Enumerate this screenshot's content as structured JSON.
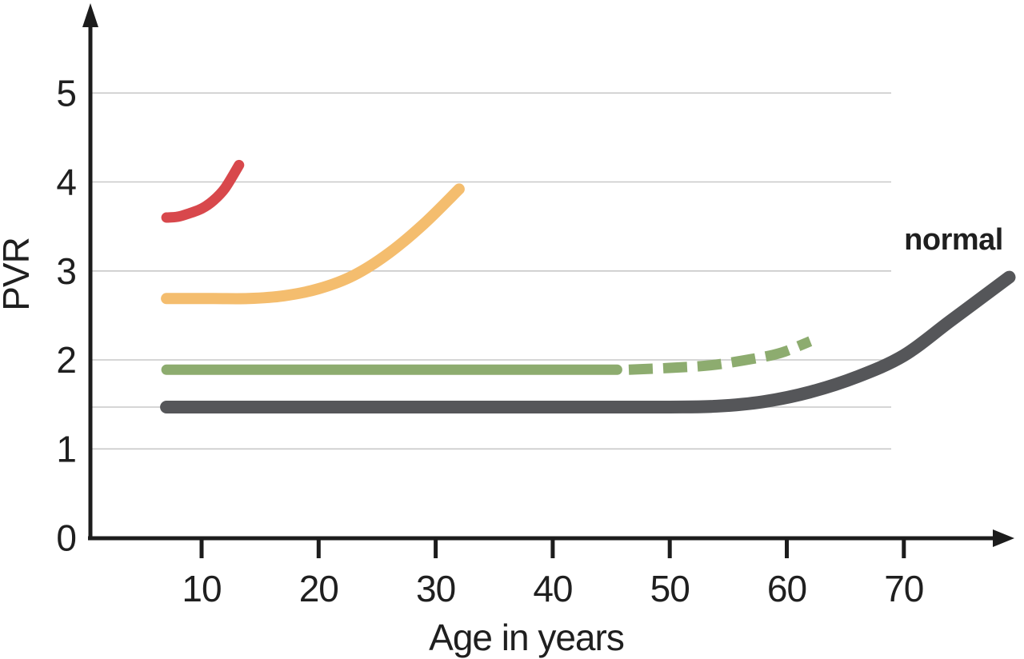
{
  "figure": {
    "background": "#ffffff"
  },
  "chart_data": {
    "type": "line",
    "title": "",
    "xlabel": "Age in years",
    "ylabel": "PVR",
    "x_ticks": [
      10,
      20,
      30,
      40,
      50,
      60,
      70
    ],
    "y_ticks": [
      5,
      4,
      3,
      2,
      1,
      0
    ],
    "y_gridlines": [
      1,
      2,
      3,
      4,
      5
    ],
    "reference_line_y": 1.47,
    "xlim": [
      0,
      80
    ],
    "ylim": [
      0,
      5.6
    ],
    "grid": "horizontal-only",
    "legend_position": "inline-label-top-right",
    "axis_color": "#1c1c1c",
    "grid_color": "#c8c8c8",
    "normal_label_color": "#57575a",
    "series": [
      {
        "name": "red-curve",
        "label": "",
        "color": "#d8484c",
        "style": "solid",
        "points": [
          [
            7,
            3.6
          ],
          [
            8,
            3.61
          ],
          [
            9,
            3.65
          ],
          [
            10,
            3.7
          ],
          [
            11,
            3.79
          ],
          [
            12,
            3.93
          ],
          [
            13.2,
            4.19
          ]
        ]
      },
      {
        "name": "orange-curve",
        "label": "",
        "color": "#f4bd6e",
        "style": "solid",
        "points": [
          [
            7,
            2.69
          ],
          [
            11,
            2.69
          ],
          [
            14,
            2.69
          ],
          [
            17,
            2.72
          ],
          [
            20,
            2.8
          ],
          [
            23,
            2.95
          ],
          [
            26,
            3.2
          ],
          [
            29,
            3.53
          ],
          [
            32,
            3.92
          ]
        ]
      },
      {
        "name": "green-curve-solid",
        "label": "",
        "color": "#8dac6f",
        "style": "solid",
        "points": [
          [
            7,
            1.89
          ],
          [
            20,
            1.89
          ],
          [
            33,
            1.89
          ],
          [
            45.5,
            1.89
          ]
        ]
      },
      {
        "name": "green-curve-dashed",
        "label": "",
        "color": "#8dac6f",
        "style": "dashed",
        "points": [
          [
            46.5,
            1.89
          ],
          [
            50,
            1.91
          ],
          [
            53.5,
            1.94
          ],
          [
            57,
            2.01
          ],
          [
            59.5,
            2.08
          ],
          [
            62,
            2.21
          ]
        ]
      },
      {
        "name": "normal-curve",
        "label": "normal",
        "color": "#555659",
        "style": "solid",
        "points": [
          [
            7,
            1.47
          ],
          [
            25,
            1.47
          ],
          [
            40,
            1.47
          ],
          [
            50,
            1.47
          ],
          [
            54,
            1.48
          ],
          [
            58,
            1.53
          ],
          [
            62,
            1.64
          ],
          [
            66,
            1.81
          ],
          [
            70,
            2.05
          ],
          [
            74,
            2.44
          ],
          [
            79,
            2.93
          ]
        ]
      }
    ]
  }
}
